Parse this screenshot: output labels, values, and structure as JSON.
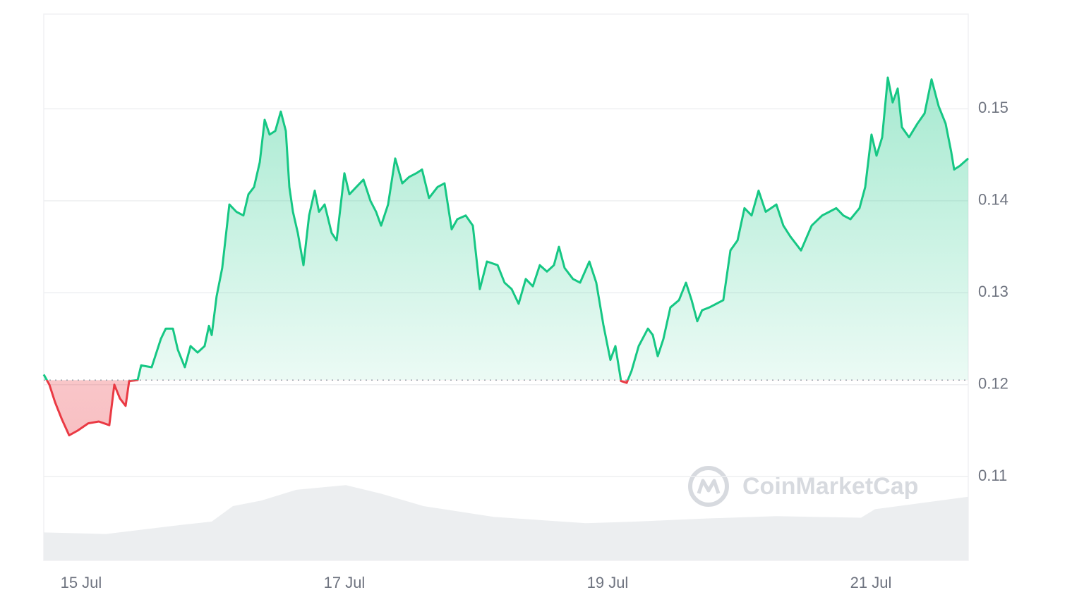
{
  "chart_data": {
    "type": "line",
    "x": [
      14.716,
      14.759,
      14.802,
      14.855,
      14.909,
      14.973,
      15.054,
      15.134,
      15.214,
      15.252,
      15.295,
      15.338,
      15.365,
      15.429,
      15.456,
      15.536,
      15.606,
      15.643,
      15.697,
      15.735,
      15.788,
      15.831,
      15.885,
      15.938,
      15.971,
      15.992,
      16.029,
      16.072,
      16.126,
      16.18,
      16.233,
      16.271,
      16.314,
      16.357,
      16.394,
      16.432,
      16.475,
      16.517,
      16.555,
      16.582,
      16.609,
      16.646,
      16.689,
      16.732,
      16.775,
      16.807,
      16.85,
      16.903,
      16.941,
      17.0,
      17.038,
      17.091,
      17.145,
      17.198,
      17.241,
      17.279,
      17.332,
      17.386,
      17.44,
      17.493,
      17.547,
      17.59,
      17.643,
      17.708,
      17.761,
      17.815,
      17.858,
      17.922,
      17.976,
      18.029,
      18.083,
      18.164,
      18.217,
      18.271,
      18.324,
      18.378,
      18.432,
      18.485,
      18.539,
      18.592,
      18.63,
      18.673,
      18.737,
      18.791,
      18.861,
      18.914,
      18.968,
      19.021,
      19.059,
      19.102,
      19.145,
      19.182,
      19.236,
      19.306,
      19.343,
      19.381,
      19.424,
      19.477,
      19.542,
      19.595,
      19.638,
      19.681,
      19.718,
      19.772,
      19.826,
      19.879,
      19.933,
      19.987,
      20.04,
      20.094,
      20.147,
      20.201,
      20.282,
      20.335,
      20.389,
      20.469,
      20.55,
      20.63,
      20.684,
      20.737,
      20.791,
      20.845,
      20.914,
      20.957,
      21.005,
      21.043,
      21.086,
      21.129,
      21.166,
      21.204,
      21.236,
      21.29,
      21.354,
      21.408,
      21.461,
      21.515,
      21.568,
      21.611,
      21.633,
      21.676,
      21.74
    ],
    "values": [
      0.1211,
      0.12,
      0.1181,
      0.1162,
      0.1145,
      0.115,
      0.1158,
      0.116,
      0.1156,
      0.12,
      0.1185,
      0.1177,
      0.1204,
      0.1205,
      0.1221,
      0.1219,
      0.125,
      0.1261,
      0.1261,
      0.1238,
      0.1219,
      0.1242,
      0.1235,
      0.1242,
      0.1264,
      0.1254,
      0.1296,
      0.1327,
      0.1396,
      0.1388,
      0.1384,
      0.1407,
      0.1415,
      0.1442,
      0.1488,
      0.1472,
      0.1476,
      0.1497,
      0.1476,
      0.1415,
      0.1388,
      0.1365,
      0.133,
      0.1384,
      0.1411,
      0.1388,
      0.1396,
      0.1365,
      0.1357,
      0.143,
      0.1407,
      0.1415,
      0.1423,
      0.14,
      0.1388,
      0.1373,
      0.1396,
      0.1446,
      0.1419,
      0.1426,
      0.143,
      0.1434,
      0.1403,
      0.1415,
      0.1419,
      0.1369,
      0.138,
      0.1384,
      0.1373,
      0.1304,
      0.1334,
      0.133,
      0.1311,
      0.1304,
      0.1288,
      0.1315,
      0.1307,
      0.133,
      0.1323,
      0.133,
      0.135,
      0.1327,
      0.1315,
      0.1311,
      0.1334,
      0.1311,
      0.1265,
      0.1227,
      0.1242,
      0.1204,
      0.1202,
      0.1215,
      0.1242,
      0.1261,
      0.1254,
      0.1231,
      0.125,
      0.1284,
      0.1292,
      0.1311,
      0.1292,
      0.1269,
      0.1281,
      0.1284,
      0.1288,
      0.1292,
      0.1346,
      0.1357,
      0.1392,
      0.1384,
      0.1411,
      0.1388,
      0.1396,
      0.1373,
      0.1361,
      0.1346,
      0.1373,
      0.1384,
      0.1388,
      0.1392,
      0.1384,
      0.138,
      0.1392,
      0.1415,
      0.1472,
      0.1449,
      0.1469,
      0.1534,
      0.1507,
      0.1522,
      0.148,
      0.1469,
      0.1484,
      0.1495,
      0.1532,
      0.1503,
      0.1484,
      0.1453,
      0.1434,
      0.1438,
      0.1446
    ],
    "baseline": 0.1205,
    "color_up": "#16c784",
    "color_down": "#ea3943",
    "xlim": [
      14.716,
      21.74
    ],
    "ylim": [
      0.1009,
      0.1603
    ],
    "yticks": [
      0.11,
      0.12,
      0.13,
      0.14,
      0.15
    ],
    "xticks": [
      {
        "value": 15,
        "label": "15 Jul"
      },
      {
        "value": 17,
        "label": "17 Jul"
      },
      {
        "value": 19,
        "label": "19 Jul"
      },
      {
        "value": 21,
        "label": "21 Jul"
      }
    ],
    "grid": true,
    "volume": {
      "x": [
        14.716,
        15.188,
        15.724,
        15.992,
        16.153,
        16.367,
        16.635,
        17.011,
        17.279,
        17.601,
        18.137,
        18.834,
        19.209,
        19.745,
        20.282,
        20.925,
        21.032,
        21.74
      ],
      "values": [
        36,
        34,
        45,
        50,
        70,
        77,
        91,
        97,
        86,
        70,
        56,
        48,
        50,
        54,
        57,
        55,
        66,
        82
      ],
      "lim": [
        0,
        100
      ],
      "color": "#eceef0"
    },
    "watermark": "CoinMarketCap"
  }
}
